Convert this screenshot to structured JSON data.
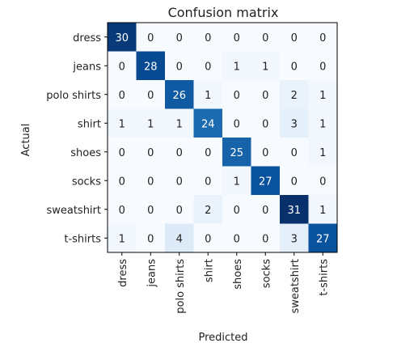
{
  "chart_data": {
    "type": "heatmap",
    "title": "Confusion matrix",
    "xlabel": "Predicted",
    "ylabel": "Actual",
    "labels": [
      "dress",
      "jeans",
      "polo shirts",
      "shirt",
      "shoes",
      "socks",
      "sweatshirt",
      "t-shirts"
    ],
    "matrix": [
      [
        30,
        0,
        0,
        0,
        0,
        0,
        0,
        0
      ],
      [
        0,
        28,
        0,
        0,
        1,
        1,
        0,
        0
      ],
      [
        0,
        0,
        26,
        1,
        0,
        0,
        2,
        1
      ],
      [
        1,
        1,
        1,
        24,
        0,
        0,
        3,
        1
      ],
      [
        0,
        0,
        0,
        0,
        25,
        0,
        0,
        1
      ],
      [
        0,
        0,
        0,
        0,
        1,
        27,
        0,
        0
      ],
      [
        0,
        0,
        0,
        2,
        0,
        0,
        31,
        1
      ],
      [
        1,
        0,
        4,
        0,
        0,
        0,
        3,
        27
      ]
    ],
    "colormap": "Blues",
    "vmin": 0,
    "vmax": 31,
    "text_color_dark": "#222222",
    "text_color_light": "#ffffff"
  }
}
